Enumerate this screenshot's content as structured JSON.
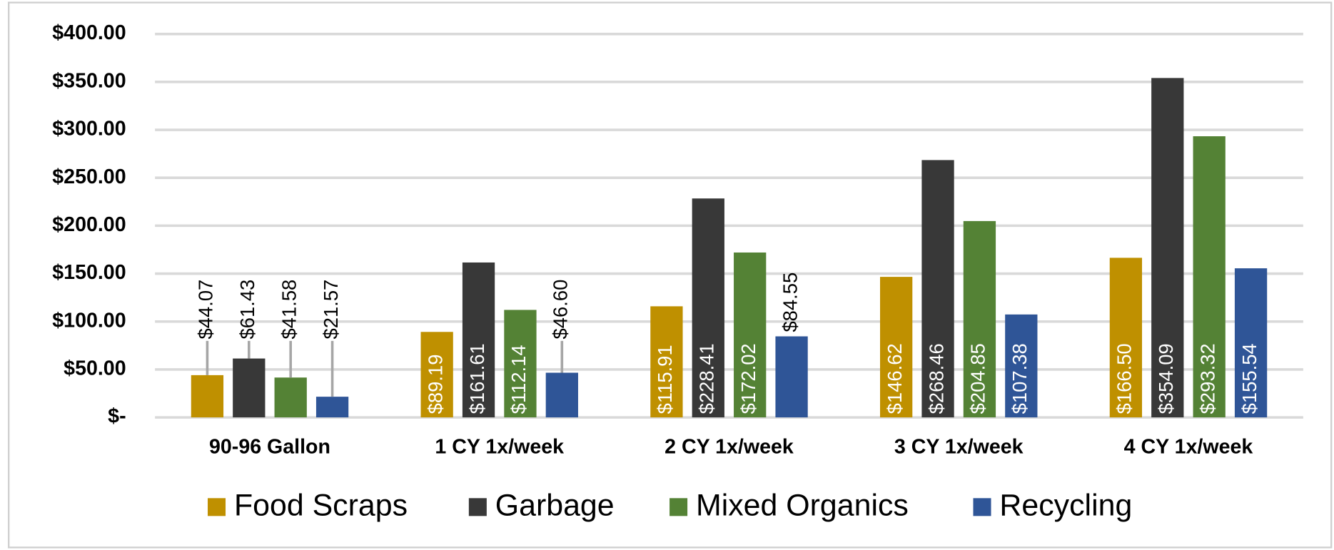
{
  "chart_data": {
    "type": "bar",
    "categories": [
      "90-96 Gallon",
      "1 CY 1x/week",
      "2 CY 1x/week",
      "3 CY 1x/week",
      "4 CY 1x/week"
    ],
    "series": [
      {
        "name": "Food Scraps",
        "color": "#bf9000",
        "values": [
          44.07,
          89.19,
          115.91,
          146.62,
          166.5
        ],
        "value_labels": [
          "$44.07",
          "$89.19",
          "$115.91",
          "$146.62",
          "$166.50"
        ]
      },
      {
        "name": "Garbage",
        "color": "#383838",
        "values": [
          61.43,
          161.61,
          228.41,
          268.46,
          354.09
        ],
        "value_labels": [
          "$61.43",
          "$161.61",
          "$228.41",
          "$268.46",
          "$354.09"
        ]
      },
      {
        "name": "Mixed Organics",
        "color": "#548235",
        "values": [
          41.58,
          112.14,
          172.02,
          204.85,
          293.32
        ],
        "value_labels": [
          "$41.58",
          "$112.14",
          "$172.02",
          "$204.85",
          "$293.32"
        ]
      },
      {
        "name": "Recycling",
        "color": "#2f5597",
        "values": [
          21.57,
          46.6,
          84.55,
          107.38,
          155.54
        ],
        "value_labels": [
          "$21.57",
          "$46.60",
          "$84.55",
          "$107.38",
          "$155.54"
        ]
      }
    ],
    "ylim": [
      0,
      400
    ],
    "yticks": [
      {
        "value": 0,
        "label": "$-"
      },
      {
        "value": 50,
        "label": "$50.00"
      },
      {
        "value": 100,
        "label": "$100.00"
      },
      {
        "value": 150,
        "label": "$150.00"
      },
      {
        "value": 200,
        "label": "$200.00"
      },
      {
        "value": 250,
        "label": "$250.00"
      },
      {
        "value": 300,
        "label": "$300.00"
      },
      {
        "value": 350,
        "label": "$350.00"
      },
      {
        "value": 400,
        "label": "$400.00"
      }
    ],
    "grid": true,
    "legend": "bottom"
  }
}
